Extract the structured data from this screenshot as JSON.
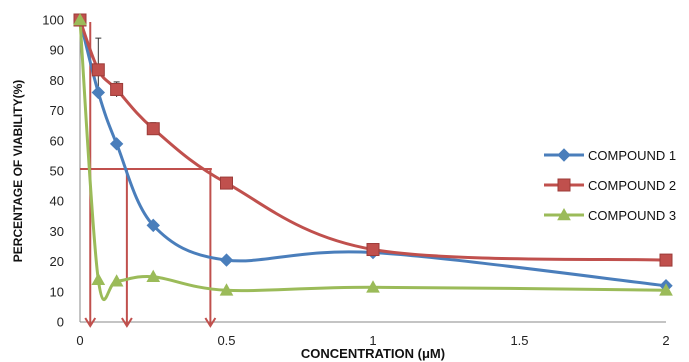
{
  "chart_data": {
    "type": "line",
    "xlabel": "CONCENTRATION (μM)",
    "ylabel": "PERCENTAGE OF VIABILITY(%)",
    "xlim": [
      0,
      2
    ],
    "ylim": [
      0,
      100
    ],
    "x_ticks": [
      "0",
      "0.5",
      "1",
      "1.5",
      "2"
    ],
    "y_ticks": [
      "0",
      "10",
      "20",
      "30",
      "40",
      "50",
      "60",
      "70",
      "80",
      "90",
      "100"
    ],
    "grid": false,
    "legend_position": "right",
    "series": [
      {
        "name": "COMPOUND 1",
        "color": "#4a7ebb",
        "marker": "diamond",
        "x": [
          0,
          0.0625,
          0.125,
          0.25,
          0.5,
          1,
          2
        ],
        "y": [
          100,
          76,
          59,
          32,
          20.5,
          23,
          12
        ]
      },
      {
        "name": "COMPOUND 2",
        "color": "#c0504d",
        "marker": "square",
        "x": [
          0,
          0.0625,
          0.125,
          0.25,
          0.5,
          1,
          2
        ],
        "y": [
          100,
          83.5,
          77,
          64,
          46,
          24,
          20.5
        ],
        "error": [
          0,
          0,
          2.5,
          2,
          1,
          0,
          0
        ]
      },
      {
        "name": "COMPOUND 3",
        "color": "#9bbb59",
        "marker": "triangle",
        "x": [
          0,
          0.0625,
          0.125,
          0.25,
          0.5,
          1,
          2
        ],
        "y": [
          100,
          14,
          13.5,
          15,
          10.5,
          11.5,
          10.5
        ]
      }
    ],
    "error_bars": [
      {
        "x": 0.0625,
        "series": "COMPOUND 1",
        "low": 76,
        "high": 94
      }
    ],
    "annotations": {
      "color": "#c0504d",
      "threshold_y": 50,
      "threshold_x_end": 0.45,
      "arrow_x": [
        0.035,
        0.16,
        0.445
      ]
    }
  }
}
